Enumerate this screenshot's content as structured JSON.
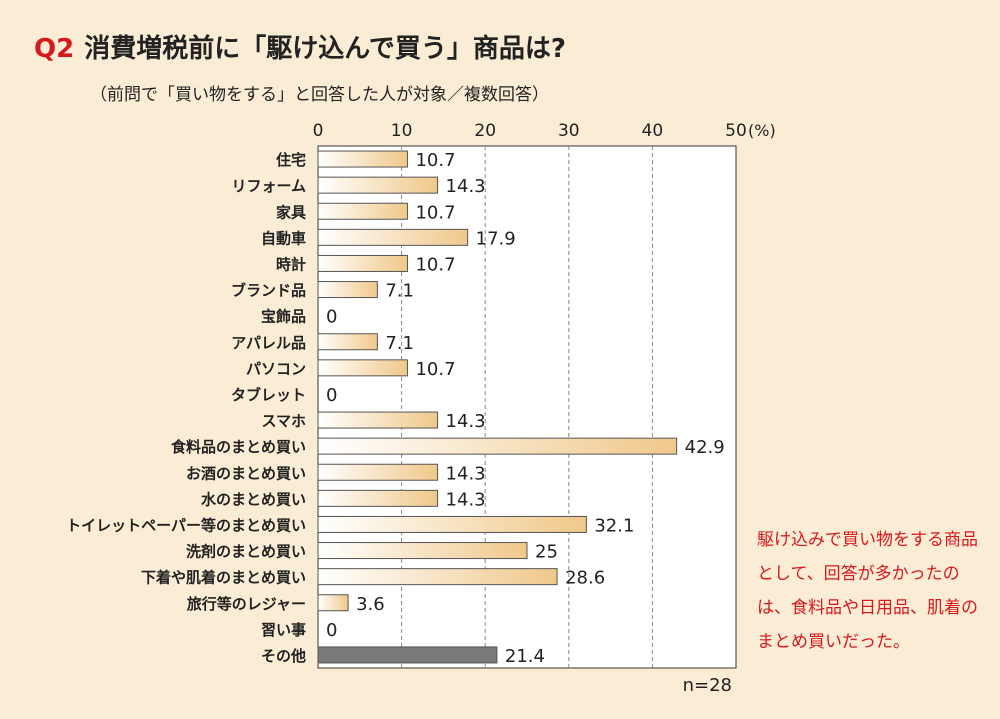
{
  "title": {
    "number": "Q2",
    "text": "消費増税前に「駆け込んで買う」商品は?"
  },
  "subtitle": "（前問で「買い物をする」と回答した人が対象／複数回答）",
  "comment": "駆け込みで買い物をする商品として、回答が多かったのは、食料品や日用品、肌着のまとめ買いだった。",
  "colors": {
    "bar_gradient_start": "#ffffff",
    "bar_gradient_end": "#f0c88a",
    "bar_other": "#7a7a7a",
    "accent_red": "#d7191c",
    "background": "#fbecd6"
  },
  "chart_data": {
    "type": "bar",
    "orientation": "horizontal",
    "categories": [
      "住宅",
      "リフォーム",
      "家具",
      "自動車",
      "時計",
      "ブランド品",
      "宝飾品",
      "アパレル品",
      "パソコン",
      "タブレット",
      "スマホ",
      "食料品のまとめ買い",
      "お酒のまとめ買い",
      "水のまとめ買い",
      "トイレットペーパー等のまとめ買い",
      "洗剤のまとめ買い",
      "下着や肌着のまとめ買い",
      "旅行等のレジャー",
      "習い事",
      "その他"
    ],
    "values": [
      10.7,
      14.3,
      10.7,
      17.9,
      10.7,
      7.1,
      0,
      7.1,
      10.7,
      0,
      14.3,
      42.9,
      14.3,
      14.3,
      32.1,
      25,
      28.6,
      3.6,
      0,
      21.4
    ],
    "value_labels": [
      "10.7",
      "14.3",
      "10.7",
      "17.9",
      "10.7",
      "7.1",
      "0",
      "7.1",
      "10.7",
      "0",
      "14.3",
      "42.9",
      "14.3",
      "14.3",
      "32.1",
      "25",
      "28.6",
      "3.6",
      "0",
      "21.4"
    ],
    "xlim": [
      0,
      50
    ],
    "ticks": [
      0,
      10,
      20,
      30,
      40,
      50
    ],
    "unit": "(%)",
    "n_label": "n=28",
    "highlight_category": "その他",
    "grid": true
  }
}
